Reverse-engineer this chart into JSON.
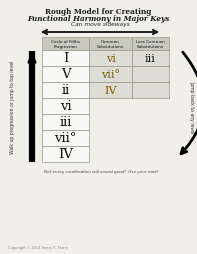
{
  "title_line1": "Rough Model for Creating",
  "title_line2": "Functional Harmony in Major Keys",
  "sideways_label": "Can move sideways",
  "col_headers": [
    "Circle of Fifths\nProgression",
    "Common\nSubstitutions",
    "Less Common\nSubstitutions"
  ],
  "rows": [
    [
      "I",
      "vi",
      "iii"
    ],
    [
      "V",
      "vii°",
      ""
    ],
    [
      "ii",
      "IV",
      ""
    ],
    [
      "vi",
      "",
      ""
    ],
    [
      "iii",
      "",
      ""
    ],
    [
      "vii°",
      "",
      ""
    ],
    [
      "IV",
      "",
      ""
    ]
  ],
  "left_arrow_label": "Walk up progression or jump to top level",
  "right_arrow_label": "Jump back to any level",
  "footnote": "Not every combination will sound good!  Use your ears!",
  "copyright": "Copyright © 2014 Henry S. Flurry",
  "bg_color": "#f0efe8",
  "header_bg": "#c8c8be",
  "cell_bg_white": "#f8f8f4",
  "cell_bg_gray": "#ddddd5",
  "border_color": "#999988"
}
